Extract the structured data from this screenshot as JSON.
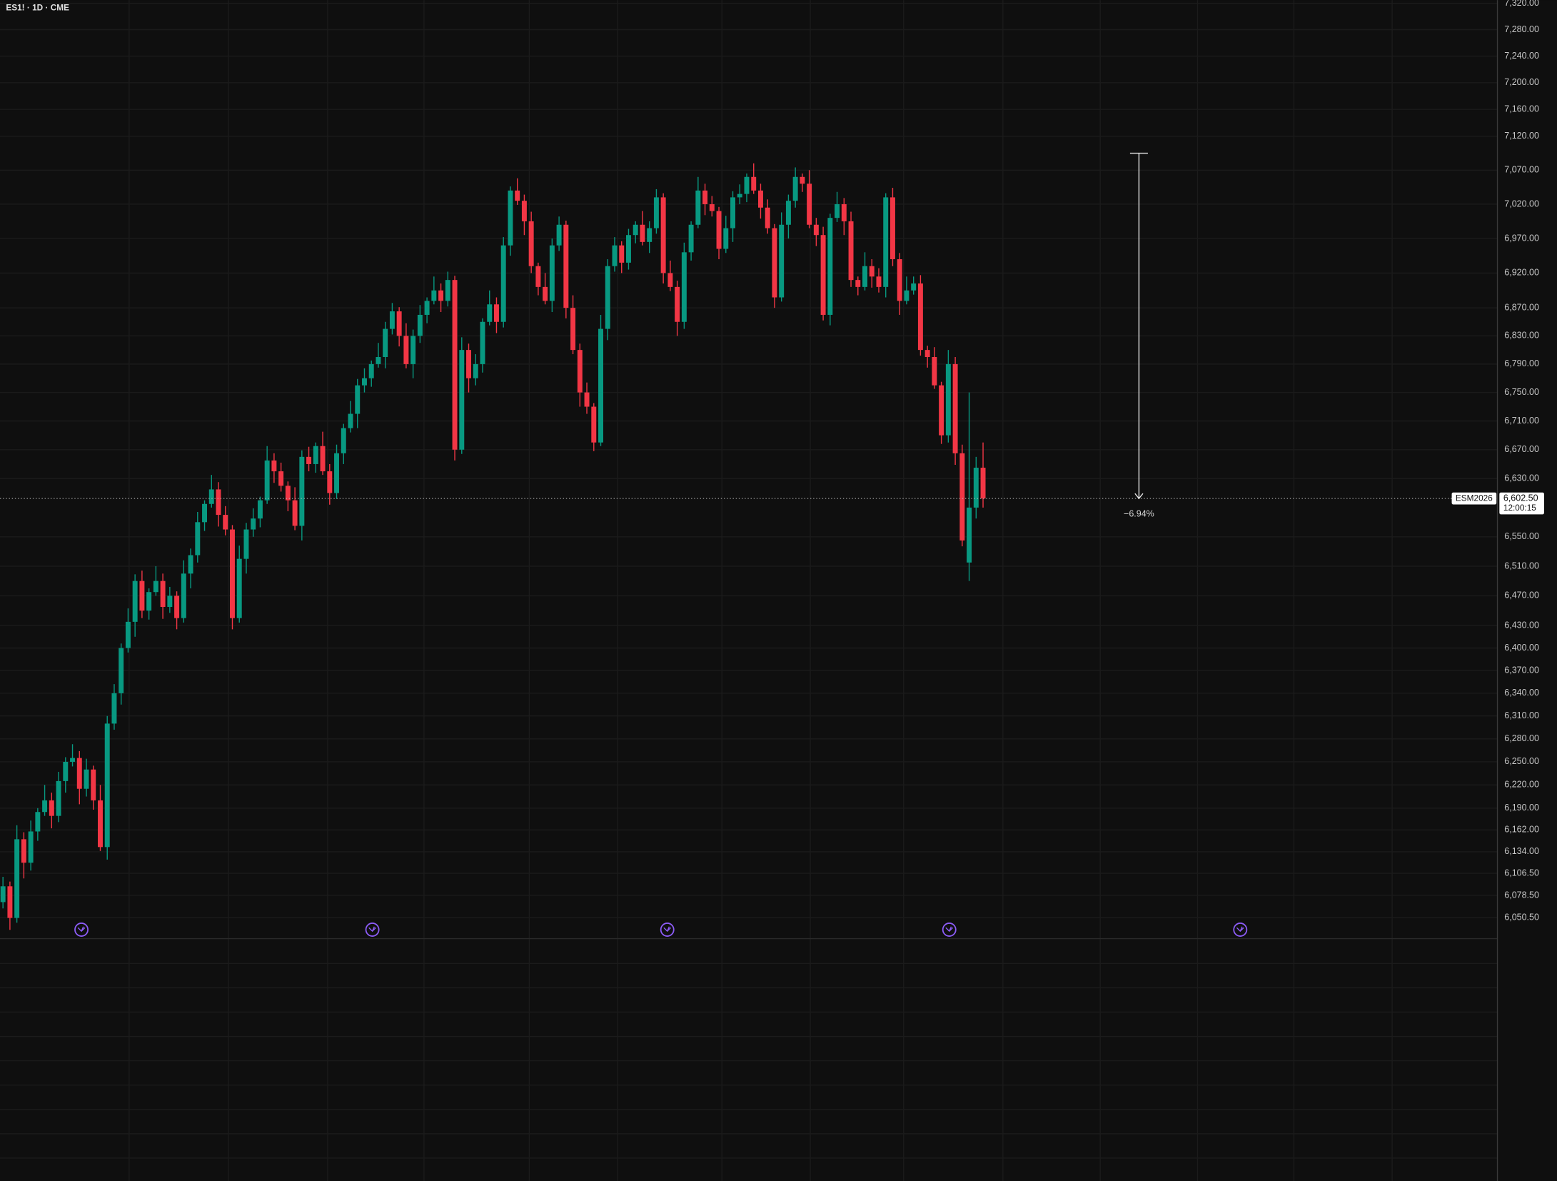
{
  "chart_data": {
    "type": "candlestick",
    "title": "ES1! · 1D · CME",
    "log_scale": true,
    "grid": true,
    "up_color": "#089981",
    "down_color": "#f23645",
    "ylim": [
      6024,
      7325
    ],
    "yticks": [
      {
        "value": 7320,
        "label": "7,320.00"
      },
      {
        "value": 7280,
        "label": "7,280.00"
      },
      {
        "value": 7240,
        "label": "7,240.00"
      },
      {
        "value": 7200,
        "label": "7,200.00"
      },
      {
        "value": 7160,
        "label": "7,160.00"
      },
      {
        "value": 7120,
        "label": "7,120.00"
      },
      {
        "value": 7070,
        "label": "7,070.00"
      },
      {
        "value": 7020,
        "label": "7,020.00"
      },
      {
        "value": 6970,
        "label": "6,970.00"
      },
      {
        "value": 6920,
        "label": "6,920.00"
      },
      {
        "value": 6870,
        "label": "6,870.00"
      },
      {
        "value": 6830,
        "label": "6,830.00"
      },
      {
        "value": 6790,
        "label": "6,790.00"
      },
      {
        "value": 6750,
        "label": "6,750.00"
      },
      {
        "value": 6710,
        "label": "6,710.00"
      },
      {
        "value": 6670,
        "label": "6,670.00"
      },
      {
        "value": 6630,
        "label": "6,630.00"
      },
      {
        "value": 6550,
        "label": "6,550.00"
      },
      {
        "value": 6510,
        "label": "6,510.00"
      },
      {
        "value": 6470,
        "label": "6,470.00"
      },
      {
        "value": 6430,
        "label": "6,430.00"
      },
      {
        "value": 6400,
        "label": "6,400.00"
      },
      {
        "value": 6370,
        "label": "6,370.00"
      },
      {
        "value": 6340,
        "label": "6,340.00"
      },
      {
        "value": 6310,
        "label": "6,310.00"
      },
      {
        "value": 6280,
        "label": "6,280.00"
      },
      {
        "value": 6250,
        "label": "6,250.00"
      },
      {
        "value": 6220,
        "label": "6,220.00"
      },
      {
        "value": 6190,
        "label": "6,190.00"
      },
      {
        "value": 6162,
        "label": "6,162.00"
      },
      {
        "value": 6134,
        "label": "6,134.00"
      },
      {
        "value": 6106.5,
        "label": "6,106.50"
      },
      {
        "value": 6078.5,
        "label": "6,078.50"
      },
      {
        "value": 6050.5,
        "label": "6,050.50"
      }
    ],
    "open": [
      6070,
      6090,
      6050,
      6150,
      6120,
      6160,
      6185,
      6200,
      6180,
      6225,
      6250,
      6255,
      6215,
      6240,
      6200,
      6140,
      6300,
      6340,
      6400,
      6435,
      6490,
      6450,
      6475,
      6490,
      6455,
      6470,
      6440,
      6500,
      6525,
      6570,
      6595,
      6615,
      6580,
      6560,
      6440,
      6520,
      6560,
      6575,
      6600,
      6655,
      6640,
      6620,
      6600,
      6565,
      6660,
      6650,
      6675,
      6640,
      6610,
      6665,
      6700,
      6720,
      6760,
      6770,
      6790,
      6800,
      6840,
      6865,
      6830,
      6790,
      6830,
      6860,
      6880,
      6895,
      6880,
      6910,
      6670,
      6810,
      6770,
      6790,
      6850,
      6875,
      6850,
      6960,
      7040,
      7025,
      6995,
      6930,
      6900,
      6880,
      6960,
      6990,
      6870,
      6810,
      6750,
      6730,
      6680,
      6840,
      6930,
      6960,
      6935,
      6975,
      6990,
      6965,
      6985,
      7030,
      6920,
      6900,
      6850,
      6950,
      6990,
      7040,
      7020,
      7010,
      6955,
      6985,
      7030,
      7035,
      7060,
      7040,
      7015,
      6985,
      6885,
      6990,
      7025,
      7060,
      7050,
      6990,
      6975,
      6860,
      7000,
      7020,
      6995,
      6910,
      6900,
      6930,
      6915,
      6900,
      7030,
      6940,
      6880,
      6895,
      6905,
      6810,
      6800,
      6760,
      6690,
      6790,
      6665,
      6515,
      6590,
      6645
    ],
    "high": [
      6102,
      6096,
      6168,
      6159,
      6174,
      6190,
      6220,
      6210,
      6237,
      6256,
      6273,
      6264,
      6254,
      6245,
      6220,
      6310,
      6352,
      6406,
      6453,
      6499,
      6504,
      6480,
      6510,
      6500,
      6482,
      6476,
      6518,
      6534,
      6584,
      6600,
      6635,
      6625,
      6592,
      6566,
      6538,
      6569,
      6589,
      6605,
      6675,
      6665,
      6652,
      6626,
      6618,
      6669,
      6674,
      6680,
      6695,
      6650,
      6677,
      6706,
      6738,
      6769,
      6784,
      6795,
      6820,
      6850,
      6877,
      6871,
      6848,
      6839,
      6874,
      6885,
      6915,
      6905,
      6922,
      6916,
      6828,
      6819,
      6804,
      6855,
      6895,
      6885,
      6972,
      7046,
      7058,
      7034,
      7009,
      6935,
      6920,
      6970,
      7002,
      6996,
      6888,
      6819,
      6764,
      6735,
      6860,
      6940,
      6972,
      6966,
      6984,
      6995,
      7010,
      6995,
      7042,
      7036,
      6938,
      6909,
      6964,
      6995,
      7060,
      7050,
      7032,
      7016,
      7003,
      7039,
      7049,
      7065,
      7080,
      7050,
      7027,
      6991,
      7008,
      7034,
      7074,
      7065,
      7070,
      7000,
      6987,
      7006,
      7038,
      7029,
      7009,
      6915,
      6950,
      6940,
      6927,
      7036,
      7044,
      6949,
      6915,
      6915,
      6917,
      6816,
      6814,
      6765,
      6810,
      6800,
      6677,
      6750,
      6660,
      6680
    ],
    "low": [
      6062,
      6035,
      6044,
      6100,
      6110,
      6148,
      6180,
      6164,
      6172,
      6210,
      6244,
      6195,
      6205,
      6188,
      6135,
      6124,
      6292,
      6325,
      6394,
      6415,
      6440,
      6438,
      6470,
      6439,
      6447,
      6425,
      6434,
      6480,
      6515,
      6558,
      6590,
      6564,
      6552,
      6425,
      6434,
      6500,
      6550,
      6563,
      6595,
      6624,
      6612,
      6585,
      6559,
      6545,
      6640,
      6638,
      6635,
      6594,
      6602,
      6650,
      6694,
      6700,
      6750,
      6758,
      6785,
      6784,
      6832,
      6815,
      6784,
      6770,
      6820,
      6848,
      6875,
      6864,
      6872,
      6655,
      6664,
      6750,
      6760,
      6778,
      6845,
      6834,
      6842,
      6945,
      7019,
      6975,
      6920,
      6888,
      6875,
      6864,
      6952,
      6855,
      6804,
      6730,
      6720,
      6668,
      6675,
      6824,
      6922,
      6920,
      6925,
      6963,
      6960,
      6949,
      6977,
      6905,
      6894,
      6830,
      6840,
      6938,
      6985,
      7004,
      7002,
      6940,
      6949,
      6965,
      7020,
      7023,
      7035,
      6999,
      6977,
      6870,
      6879,
      6970,
      7015,
      7038,
      6985,
      6959,
      6852,
      6845,
      6994,
      6975,
      6900,
      6888,
      6895,
      6899,
      6892,
      6885,
      6930,
      6860,
      6875,
      6889,
      6802,
      6785,
      6755,
      6678,
      6680,
      6649,
      6537,
      6490,
      6575,
      6590
    ],
    "close": [
      6090,
      6050,
      6150,
      6120,
      6160,
      6185,
      6200,
      6180,
      6225,
      6250,
      6255,
      6215,
      6240,
      6200,
      6140,
      6300,
      6340,
      6400,
      6435,
      6490,
      6450,
      6475,
      6490,
      6455,
      6470,
      6440,
      6500,
      6525,
      6570,
      6595,
      6615,
      6580,
      6560,
      6440,
      6520,
      6560,
      6575,
      6600,
      6655,
      6640,
      6620,
      6600,
      6565,
      6660,
      6650,
      6675,
      6640,
      6610,
      6665,
      6700,
      6720,
      6760,
      6770,
      6790,
      6800,
      6840,
      6865,
      6830,
      6790,
      6830,
      6860,
      6880,
      6895,
      6880,
      6910,
      6670,
      6810,
      6770,
      6790,
      6850,
      6875,
      6850,
      6960,
      7040,
      7025,
      6995,
      6930,
      6900,
      6880,
      6960,
      6990,
      6870,
      6810,
      6750,
      6730,
      6680,
      6840,
      6930,
      6960,
      6935,
      6975,
      6990,
      6965,
      6985,
      7030,
      6920,
      6900,
      6850,
      6950,
      6990,
      7040,
      7020,
      7010,
      6955,
      6985,
      7030,
      7035,
      7060,
      7040,
      7015,
      6985,
      6885,
      6990,
      7025,
      7060,
      7050,
      6990,
      6975,
      6860,
      7000,
      7020,
      6995,
      6910,
      6900,
      6930,
      6915,
      6900,
      7030,
      6940,
      6880,
      6895,
      6905,
      6810,
      6800,
      6760,
      6690,
      6790,
      6665,
      6545,
      6590,
      6645,
      6602.5
    ],
    "last_price": {
      "value": 6602.5,
      "label": "6,602.50"
    },
    "symbol_tag": "ESM2026",
    "countdown": "12:00:15",
    "measure": {
      "from": 7095,
      "to": 6602.5,
      "label": "−6.94%"
    }
  }
}
